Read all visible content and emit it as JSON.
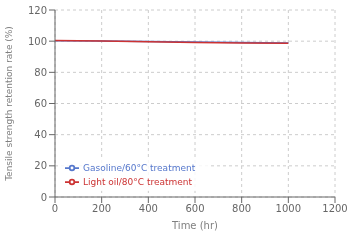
{
  "chart_data": {
    "type": "line",
    "xlabel": "Time (hr)",
    "ylabel": "Tensile strength retention rate (%)",
    "x": [
      0,
      200,
      400,
      600,
      800,
      1000
    ],
    "series": [
      {
        "name": "Gasoline/60°C treatment",
        "color": "#5577cc",
        "values": [
          100.3,
          100.1,
          99.8,
          99.5,
          99.2,
          98.9
        ]
      },
      {
        "name": "Light oil/80°C treatment",
        "color": "#cc3333",
        "values": [
          100.5,
          100.1,
          99.6,
          99.2,
          98.9,
          98.7
        ]
      }
    ],
    "xlim": [
      0,
      1200
    ],
    "ylim": [
      0,
      120
    ],
    "xticks": [
      0,
      200,
      400,
      600,
      800,
      1000,
      1200
    ],
    "yticks": [
      0,
      20,
      40,
      60,
      80,
      100,
      120
    ],
    "grid": true,
    "legend": "lower left"
  }
}
